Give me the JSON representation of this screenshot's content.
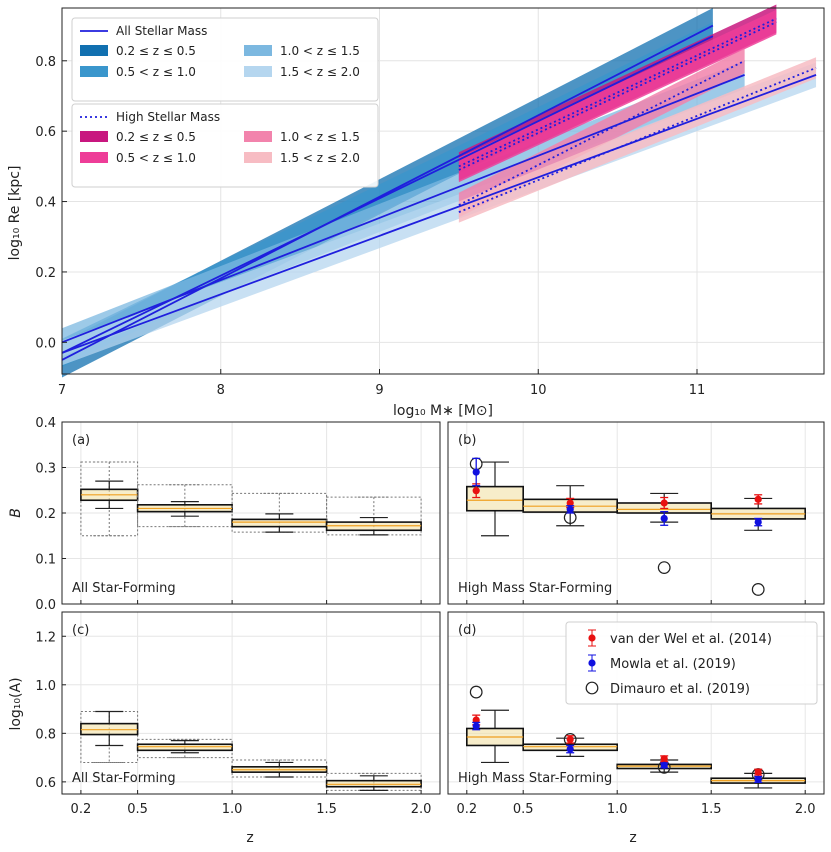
{
  "colors": {
    "blue_line": "#1f1fdd",
    "blue_bands": [
      "#1170b0",
      "#3a96cc",
      "#7cb8e0",
      "#b5d6ef"
    ],
    "pink_bands": [
      "#c8177f",
      "#ee3d98",
      "#f283ac",
      "#f7bcc3"
    ],
    "box_fill": "#f2e1a6",
    "median": "#f0a020",
    "vdw": "#e81010",
    "mowla": "#1010e0",
    "dimauro": "#222222"
  },
  "chart_data": [
    {
      "type": "line",
      "xlabel": "log₁₀ M∗ [M⊙]",
      "ylabel": "log₁₀ Re [kpc]",
      "xlim": [
        7.0,
        11.8
      ],
      "ylim": [
        -0.09,
        0.95
      ],
      "xticks": [
        "7",
        "8",
        "9",
        "10",
        "11"
      ],
      "yticks": [
        "0.0",
        "0.2",
        "0.4",
        "0.6",
        "0.8"
      ],
      "legend_all": {
        "title": "All Stellar Mass",
        "entries": [
          "0.2 ≤ z ≤ 0.5",
          "1.0 < z ≤ 1.5",
          "0.5 < z ≤ 1.0",
          "1.5 < z ≤ 2.0"
        ]
      },
      "legend_high": {
        "title": "High Stellar Mass",
        "entries": [
          "0.2 ≤ z ≤ 0.5",
          "1.0 < z ≤ 1.5",
          "0.5 < z ≤ 1.0",
          "1.5 < z ≤ 2.0"
        ]
      },
      "series_all": [
        {
          "x": [
            7.0,
            11.1
          ],
          "y": [
            -0.05,
            0.9
          ],
          "band": 0.05
        },
        {
          "x": [
            7.0,
            11.1
          ],
          "y": [
            -0.03,
            0.87
          ],
          "band": 0.04
        },
        {
          "x": [
            7.0,
            11.3
          ],
          "y": [
            0.0,
            0.76
          ],
          "band": 0.04
        },
        {
          "x": [
            7.0,
            11.75
          ],
          "y": [
            -0.03,
            0.76
          ],
          "band": 0.035
        }
      ],
      "series_high": [
        {
          "x": [
            9.5,
            11.5
          ],
          "y": [
            0.5,
            0.92
          ],
          "band": 0.04
        },
        {
          "x": [
            9.5,
            11.5
          ],
          "y": [
            0.49,
            0.91
          ],
          "band": 0.035
        },
        {
          "x": [
            9.5,
            11.3
          ],
          "y": [
            0.39,
            0.8
          ],
          "band": 0.035
        },
        {
          "x": [
            9.5,
            11.75
          ],
          "y": [
            0.37,
            0.78
          ],
          "band": 0.03
        }
      ]
    },
    {
      "type": "box",
      "panel": "(a)",
      "label": "All Star-Forming",
      "ylabel": "B",
      "ylim": [
        0.0,
        0.4
      ],
      "yticks": [
        "0.0",
        "0.1",
        "0.2",
        "0.3",
        "0.4"
      ],
      "boxes": [
        {
          "bin": [
            0.2,
            0.5
          ],
          "q1": 0.228,
          "med": 0.24,
          "q3": 0.252,
          "lo": 0.21,
          "hi": 0.27,
          "glo": 0.15,
          "ghi": 0.312
        },
        {
          "bin": [
            0.5,
            1.0
          ],
          "q1": 0.203,
          "med": 0.21,
          "q3": 0.218,
          "lo": 0.193,
          "hi": 0.225,
          "glo": 0.17,
          "ghi": 0.262
        },
        {
          "bin": [
            1.0,
            1.5
          ],
          "q1": 0.17,
          "med": 0.18,
          "q3": 0.186,
          "lo": 0.158,
          "hi": 0.198,
          "glo": 0.158,
          "ghi": 0.243
        },
        {
          "bin": [
            1.5,
            2.0
          ],
          "q1": 0.162,
          "med": 0.172,
          "q3": 0.18,
          "lo": 0.152,
          "hi": 0.19,
          "glo": 0.152,
          "ghi": 0.235
        }
      ]
    },
    {
      "type": "box",
      "panel": "(b)",
      "label": "High Mass Star-Forming",
      "ylim": [
        0.0,
        0.4
      ],
      "boxes": [
        {
          "bin": [
            0.2,
            0.5
          ],
          "q1": 0.205,
          "med": 0.228,
          "q3": 0.258,
          "lo": 0.15,
          "hi": 0.312
        },
        {
          "bin": [
            0.5,
            1.0
          ],
          "q1": 0.202,
          "med": 0.215,
          "q3": 0.23,
          "lo": 0.172,
          "hi": 0.26
        },
        {
          "bin": [
            1.0,
            1.5
          ],
          "q1": 0.2,
          "med": 0.208,
          "q3": 0.222,
          "lo": 0.18,
          "hi": 0.243
        },
        {
          "bin": [
            1.5,
            2.0
          ],
          "q1": 0.187,
          "med": 0.198,
          "q3": 0.21,
          "lo": 0.162,
          "hi": 0.232
        }
      ],
      "vdw": [
        [
          0.25,
          0.249,
          0.015
        ],
        [
          0.75,
          0.222,
          0.01
        ],
        [
          1.25,
          0.222,
          0.012
        ],
        [
          1.75,
          0.23,
          0.01
        ]
      ],
      "mowla": [
        [
          0.25,
          0.29,
          0.03
        ],
        [
          0.75,
          0.208,
          0.008
        ],
        [
          1.25,
          0.188,
          0.015
        ],
        [
          1.75,
          0.18,
          0.008
        ]
      ],
      "dimauro": [
        [
          0.25,
          0.308
        ],
        [
          0.75,
          0.19
        ],
        [
          1.25,
          0.08
        ],
        [
          1.75,
          0.032
        ]
      ]
    },
    {
      "type": "box",
      "panel": "(c)",
      "label": "All Star-Forming",
      "ylabel": "log₁₀(A)",
      "xlabel": "z",
      "ylim": [
        0.55,
        1.3
      ],
      "yticks": [
        "0.6",
        "0.8",
        "1.0",
        "1.2"
      ],
      "xticks": [
        "0.2",
        "0.5",
        "1.0",
        "1.5",
        "2.0"
      ],
      "boxes": [
        {
          "bin": [
            0.2,
            0.5
          ],
          "q1": 0.795,
          "med": 0.815,
          "q3": 0.84,
          "lo": 0.75,
          "hi": 0.89,
          "glo": 0.68,
          "ghi": 0.89
        },
        {
          "bin": [
            0.5,
            1.0
          ],
          "q1": 0.73,
          "med": 0.745,
          "q3": 0.755,
          "lo": 0.72,
          "hi": 0.77,
          "glo": 0.7,
          "ghi": 0.775
        },
        {
          "bin": [
            1.0,
            1.5
          ],
          "q1": 0.64,
          "med": 0.65,
          "q3": 0.662,
          "lo": 0.62,
          "hi": 0.68,
          "glo": 0.62,
          "ghi": 0.69
        },
        {
          "bin": [
            1.5,
            2.0
          ],
          "q1": 0.58,
          "med": 0.59,
          "q3": 0.605,
          "lo": 0.565,
          "hi": 0.625,
          "glo": 0.565,
          "ghi": 0.635
        }
      ]
    },
    {
      "type": "box",
      "panel": "(d)",
      "label": "High Mass Star-Forming",
      "xlabel": "z",
      "ylim": [
        0.55,
        1.3
      ],
      "xticks": [
        "0.2",
        "0.5",
        "1.0",
        "1.5",
        "2.0"
      ],
      "legend": [
        "van der Wel et al. (2014)",
        "Mowla et al. (2019)",
        "Dimauro et al. (2019)"
      ],
      "boxes": [
        {
          "bin": [
            0.2,
            0.5
          ],
          "q1": 0.75,
          "med": 0.785,
          "q3": 0.82,
          "lo": 0.68,
          "hi": 0.895
        },
        {
          "bin": [
            0.5,
            1.0
          ],
          "q1": 0.73,
          "med": 0.745,
          "q3": 0.755,
          "lo": 0.705,
          "hi": 0.78
        },
        {
          "bin": [
            1.0,
            1.5
          ],
          "q1": 0.655,
          "med": 0.665,
          "q3": 0.672,
          "lo": 0.64,
          "hi": 0.69
        },
        {
          "bin": [
            1.5,
            2.0
          ],
          "q1": 0.595,
          "med": 0.605,
          "q3": 0.615,
          "lo": 0.575,
          "hi": 0.635
        }
      ],
      "vdw": [
        [
          0.25,
          0.855,
          0.02
        ],
        [
          0.75,
          0.775,
          0.015
        ],
        [
          1.25,
          0.695,
          0.012
        ],
        [
          1.75,
          0.64,
          0.012
        ]
      ],
      "mowla": [
        [
          0.25,
          0.83,
          0.015
        ],
        [
          0.75,
          0.735,
          0.015
        ],
        [
          1.25,
          0.668,
          0.01
        ],
        [
          1.75,
          0.61,
          0.012
        ]
      ],
      "dimauro": [
        [
          0.25,
          0.97
        ],
        [
          0.75,
          0.775
        ],
        [
          1.25,
          0.66
        ],
        [
          1.75,
          0.63
        ]
      ]
    }
  ]
}
